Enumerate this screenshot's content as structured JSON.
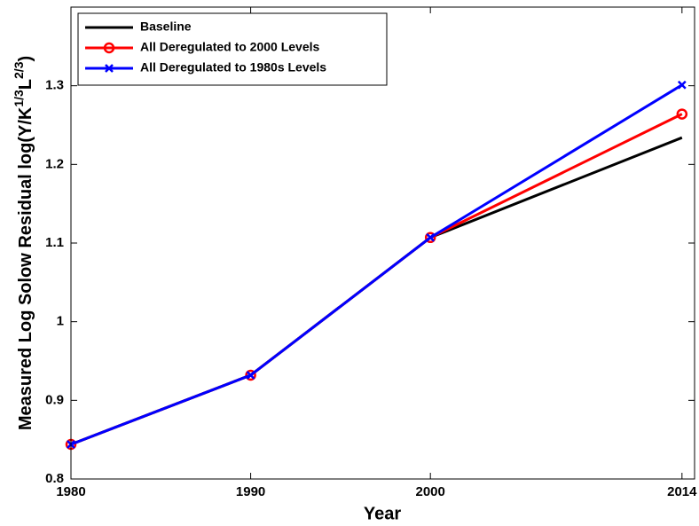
{
  "chart_data": {
    "type": "line",
    "x_label": "Year",
    "y_label": [
      "Measured Log Solow Residual log(Y/K",
      "1/3",
      "L",
      "2/3",
      ")"
    ],
    "x": [
      1980,
      1990,
      2000,
      2014
    ],
    "series": [
      {
        "name": "Baseline",
        "color": "#000000",
        "marker": "none",
        "values": [
          0.844,
          0.932,
          1.107,
          1.234
        ]
      },
      {
        "name": "All Deregulated to 2000 Levels",
        "color": "#ff0000",
        "marker": "circle",
        "values": [
          0.844,
          0.932,
          1.107,
          1.264
        ]
      },
      {
        "name": "All Deregulated to 1980s Levels",
        "color": "#0000ff",
        "marker": "x",
        "values": [
          0.844,
          0.932,
          1.107,
          1.301
        ]
      }
    ],
    "xlim": [
      1980,
      2014.7
    ],
    "xticks": [
      1980,
      1990,
      2000,
      2014
    ],
    "ylim": [
      0.8,
      1.4
    ],
    "yticks": [
      0.8,
      0.9,
      1,
      1.1,
      1.2,
      1.3
    ],
    "grid": false,
    "legend": "upper-left"
  }
}
